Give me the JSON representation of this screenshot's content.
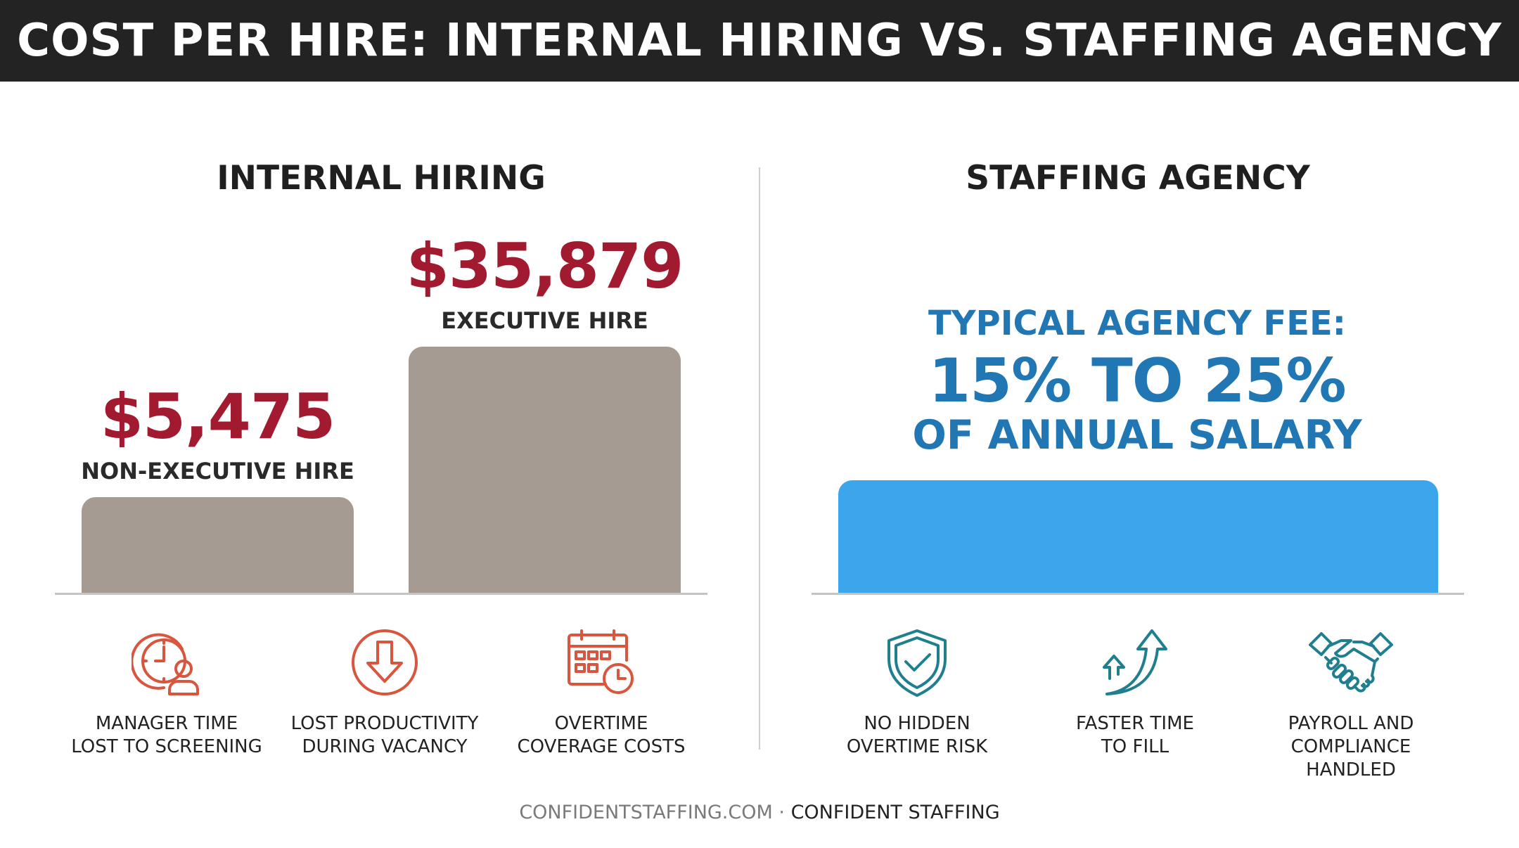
{
  "title": "COST PER HIRE: INTERNAL HIRING VS. STAFFING AGENCY",
  "colors": {
    "header_bg": "#232323",
    "internal_bar": "#a69b93",
    "internal_value_text": "#a21a2f",
    "agency_bar": "#3ba6ec",
    "agency_text": "#2077b4",
    "internal_icon": "#d8553e",
    "agency_icon": "#1f7f8f"
  },
  "internal": {
    "heading": "INTERNAL HIRING",
    "icons": [
      {
        "icon": "clock-person-icon",
        "line1": "MANAGER TIME",
        "line2": "LOST TO SCREENING"
      },
      {
        "icon": "down-arrow-circle-icon",
        "line1": "LOST PRODUCTIVITY",
        "line2": "DURING VACANCY"
      },
      {
        "icon": "calendar-clock-icon",
        "line1": "OVERTIME",
        "line2": "COVERAGE COSTS"
      }
    ]
  },
  "agency": {
    "heading": "STAFFING AGENCY",
    "fee_line1": "TYPICAL AGENCY FEE:",
    "fee_line2": "15% TO 25%",
    "fee_line3": "OF ANNUAL SALARY",
    "icons": [
      {
        "icon": "shield-check-icon",
        "line1": "NO HIDDEN",
        "line2": "OVERTIME RISK"
      },
      {
        "icon": "rising-arrows-icon",
        "line1": "FASTER TIME",
        "line2": "TO FILL"
      },
      {
        "icon": "handshake-icon",
        "line1": "PAYROLL AND",
        "line2": "COMPLIANCE HANDLED"
      }
    ]
  },
  "chart_data": {
    "type": "bar",
    "title": "INTERNAL HIRING",
    "categories": [
      "NON-EXECUTIVE HIRE",
      "EXECUTIVE HIRE"
    ],
    "values": [
      5475,
      35879
    ],
    "value_labels": [
      "$5,475",
      "$35,879"
    ],
    "ylim": [
      0,
      36000
    ],
    "grid": false
  },
  "footer": {
    "site": "CONFIDENTSTAFFING.COM",
    "separator": "·",
    "brand": "CONFIDENT STAFFING"
  }
}
